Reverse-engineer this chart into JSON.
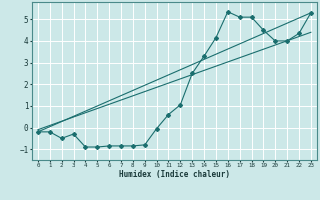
{
  "title": "",
  "xlabel": "Humidex (Indice chaleur)",
  "bg_color": "#cce8e8",
  "line_color": "#1a6e6e",
  "grid_color": "#ffffff",
  "xlim": [
    -0.5,
    23.5
  ],
  "ylim": [
    -1.5,
    5.8
  ],
  "xticks": [
    0,
    1,
    2,
    3,
    4,
    5,
    6,
    7,
    8,
    9,
    10,
    11,
    12,
    13,
    14,
    15,
    16,
    17,
    18,
    19,
    20,
    21,
    22,
    23
  ],
  "yticks": [
    -1,
    0,
    1,
    2,
    3,
    4,
    5
  ],
  "line1_x": [
    0,
    1,
    2,
    3,
    4,
    5,
    6,
    7,
    8,
    9,
    10,
    11,
    12,
    13,
    14,
    15,
    16,
    17,
    18,
    19,
    20,
    21,
    22,
    23
  ],
  "line1_y": [
    -0.2,
    -0.2,
    -0.5,
    -0.3,
    -0.9,
    -0.9,
    -0.85,
    -0.85,
    -0.85,
    -0.8,
    -0.05,
    0.6,
    1.05,
    2.5,
    3.3,
    4.15,
    5.35,
    5.1,
    5.1,
    4.5,
    4.0,
    4.0,
    4.35,
    5.3
  ],
  "line2_x": [
    0,
    23
  ],
  "line2_y": [
    -0.2,
    5.3
  ],
  "line3_x": [
    0,
    23
  ],
  "line3_y": [
    -0.1,
    4.4
  ]
}
